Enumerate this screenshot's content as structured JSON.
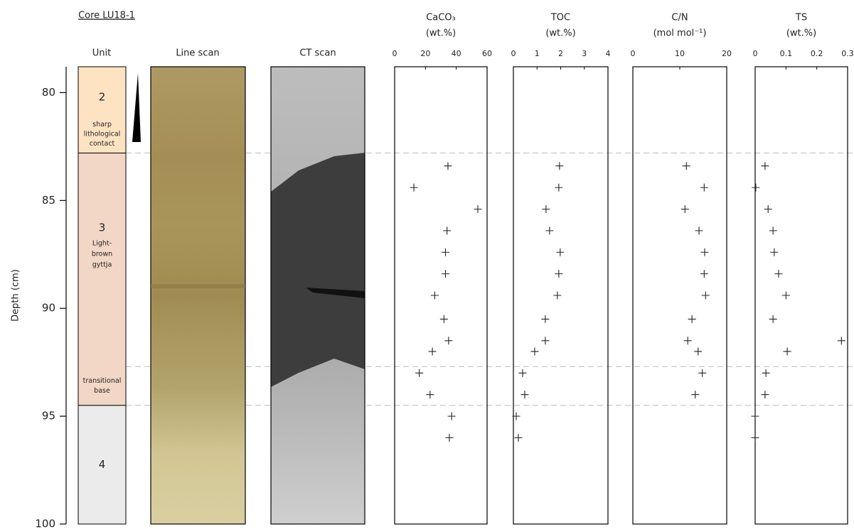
{
  "figure": {
    "title": "Core LU18-1",
    "y_label": "Depth (cm)",
    "ylim": [
      78.8,
      100
    ],
    "yticks": [
      80,
      85,
      90,
      95,
      100
    ],
    "column_labels": [
      "Unit",
      "Line scan",
      "CT scan"
    ],
    "units": [
      {
        "label": "2",
        "note": [
          "sharp",
          "lithological",
          "contact"
        ],
        "top": 78.8,
        "bottom": 82.8,
        "color": "#fde3c2"
      },
      {
        "label": "3",
        "note": [
          "Light-",
          "brown",
          "gyttja"
        ],
        "base_note": [
          "transitional",
          "base"
        ],
        "top": 82.8,
        "bottom": 94.5,
        "color": "#f2d6c6"
      },
      {
        "label": "4",
        "top": 94.5,
        "bottom": 100,
        "color": "#ebebeb"
      }
    ],
    "boundaries": [
      82.8,
      92.7,
      94.5
    ]
  },
  "chart_data": [
    {
      "type": "scatter",
      "title": "CaCO₃",
      "subtitle": "(wt.%)",
      "xlim": [
        0,
        60
      ],
      "xticks": [
        0,
        20,
        40,
        60
      ],
      "ylim": [
        78.8,
        100
      ],
      "color": "#222222",
      "y": [
        83.4,
        84.4,
        85.4,
        86.4,
        87.4,
        88.4,
        89.4,
        90.5,
        91.5,
        92.0,
        93.0,
        94.0,
        95.0,
        96.0
      ],
      "x": [
        34.6,
        12.5,
        54,
        34,
        33,
        33,
        26,
        32,
        35,
        24.5,
        16,
        23,
        37,
        35.5
      ]
    },
    {
      "type": "scatter",
      "title": "TOC",
      "subtitle": "(wt.%)",
      "xlim": [
        0,
        4
      ],
      "xticks": [
        0,
        1,
        2,
        3,
        4
      ],
      "ylim": [
        78.8,
        100
      ],
      "color": "#222222",
      "y": [
        83.4,
        84.4,
        85.4,
        86.4,
        87.4,
        88.4,
        89.4,
        90.5,
        91.5,
        92.0,
        93.0,
        94.0,
        95.0,
        96.0
      ],
      "x": [
        1.95,
        1.92,
        1.38,
        1.53,
        1.98,
        1.92,
        1.86,
        1.35,
        1.35,
        0.9,
        0.39,
        0.48,
        0.12,
        0.21
      ]
    },
    {
      "type": "scatter",
      "title": "C/N",
      "subtitle": "(mol mol⁻¹)",
      "xlim": [
        0,
        20
      ],
      "xticks": [
        0,
        10,
        20
      ],
      "ylim": [
        78.8,
        100
      ],
      "color": "#222222",
      "y": [
        83.4,
        84.4,
        85.4,
        86.4,
        87.4,
        88.4,
        89.4,
        90.5,
        91.5,
        92.0,
        93.0,
        94.0
      ],
      "x": [
        11.4,
        15.2,
        11.1,
        14.1,
        15.3,
        15.2,
        15.5,
        12.6,
        11.7,
        13.9,
        14.8,
        13.3
      ]
    },
    {
      "type": "scatter",
      "title": "TS",
      "subtitle": "(wt.%)",
      "xlim": [
        0,
        0.3
      ],
      "xticks": [
        0,
        0.1,
        0.2,
        0.3
      ],
      "ylim": [
        78.8,
        100
      ],
      "color": "#222222",
      "y": [
        83.4,
        84.4,
        85.4,
        86.4,
        87.4,
        88.4,
        89.4,
        90.5,
        91.5,
        92.0,
        93.0,
        94.0,
        95.0,
        96.0
      ],
      "x": [
        0.032,
        0.002,
        0.042,
        0.058,
        0.062,
        0.076,
        0.1,
        0.058,
        0.28,
        0.104,
        0.035,
        0.032,
        0,
        0
      ]
    }
  ]
}
